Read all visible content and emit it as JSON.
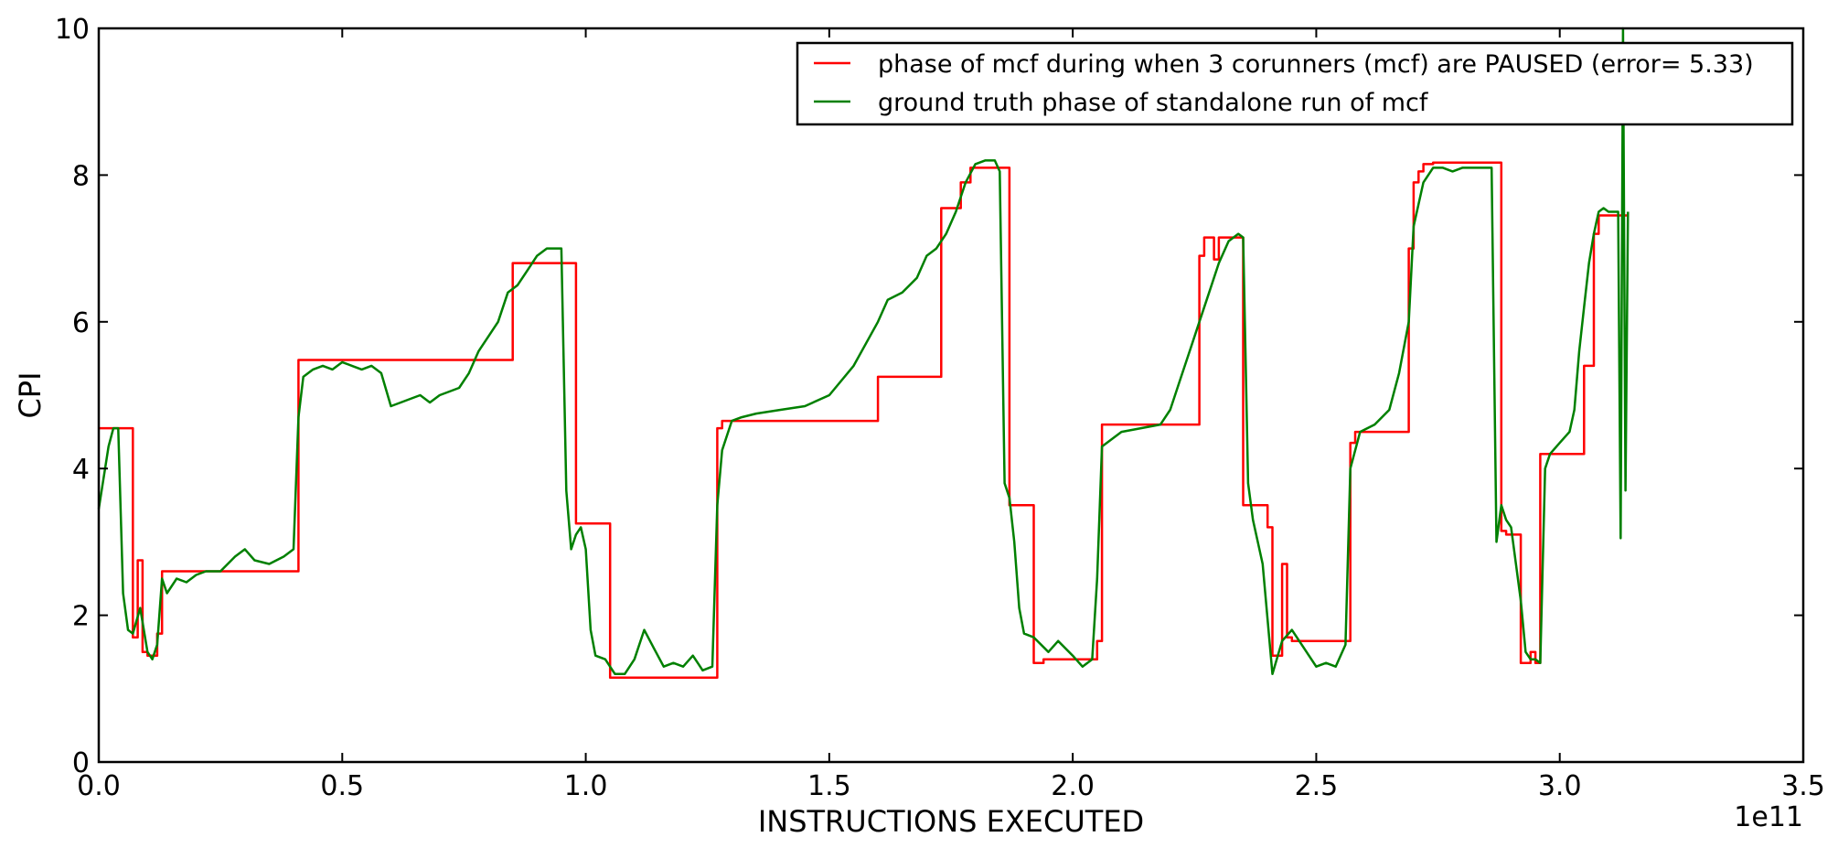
{
  "chart_data": {
    "type": "line",
    "xlabel": "INSTRUCTIONS EXECUTED",
    "ylabel": "CPI",
    "x_offset_label": "1e11",
    "xlim": [
      0,
      3.5
    ],
    "ylim": [
      0,
      10
    ],
    "x_ticks": [
      "0.0",
      "0.5",
      "1.0",
      "1.5",
      "2.0",
      "2.5",
      "3.0",
      "3.5"
    ],
    "y_ticks": [
      "0",
      "2",
      "4",
      "6",
      "8",
      "10"
    ],
    "grid": false,
    "legend_position": "top-right",
    "series": [
      {
        "name": "phase of mcf during when 3 corunners (mcf) are PAUSED (error= 5.33)",
        "color": "#ff0000",
        "style": "step",
        "x": [
          0,
          0.07,
          0.08,
          0.09,
          0.1,
          0.12,
          0.13,
          0.41,
          0.85,
          0.94,
          0.98,
          1.05,
          1.27,
          1.28,
          1.6,
          1.73,
          1.77,
          1.79,
          1.87,
          1.92,
          1.94,
          2.05,
          2.06,
          2.26,
          2.27,
          2.29,
          2.3,
          2.35,
          2.4,
          2.41,
          2.43,
          2.44,
          2.45,
          2.57,
          2.58,
          2.69,
          2.7,
          2.71,
          2.72,
          2.74,
          2.88,
          2.89,
          2.92,
          2.94,
          2.95,
          2.96,
          2.97,
          3.05,
          3.07,
          3.08,
          3.14
        ],
        "y": [
          4.55,
          1.7,
          2.75,
          1.5,
          1.45,
          1.75,
          2.6,
          5.48,
          6.8,
          6.8,
          3.25,
          1.15,
          4.55,
          4.65,
          5.25,
          7.55,
          7.9,
          8.1,
          3.5,
          1.35,
          1.4,
          1.65,
          4.6,
          6.9,
          7.15,
          6.85,
          7.15,
          3.5,
          3.2,
          1.45,
          2.7,
          1.7,
          1.65,
          4.35,
          4.5,
          7.0,
          7.9,
          8.05,
          8.15,
          8.17,
          3.15,
          3.1,
          1.35,
          1.5,
          1.35,
          4.2,
          4.2,
          5.4,
          7.2,
          7.45,
          7.45
        ]
      },
      {
        "name": "ground truth phase of standalone run of mcf",
        "color": "#008000",
        "style": "line",
        "x": [
          0,
          0.02,
          0.03,
          0.04,
          0.05,
          0.06,
          0.07,
          0.085,
          0.1,
          0.11,
          0.12,
          0.13,
          0.14,
          0.16,
          0.18,
          0.2,
          0.22,
          0.25,
          0.28,
          0.3,
          0.32,
          0.35,
          0.38,
          0.4,
          0.41,
          0.42,
          0.44,
          0.46,
          0.48,
          0.5,
          0.52,
          0.54,
          0.56,
          0.58,
          0.6,
          0.62,
          0.64,
          0.66,
          0.68,
          0.7,
          0.72,
          0.74,
          0.76,
          0.78,
          0.8,
          0.82,
          0.84,
          0.86,
          0.88,
          0.9,
          0.92,
          0.94,
          0.95,
          0.96,
          0.97,
          0.98,
          0.99,
          1.0,
          1.01,
          1.02,
          1.04,
          1.06,
          1.08,
          1.1,
          1.12,
          1.14,
          1.16,
          1.18,
          1.2,
          1.22,
          1.24,
          1.26,
          1.27,
          1.28,
          1.3,
          1.32,
          1.35,
          1.4,
          1.45,
          1.5,
          1.55,
          1.6,
          1.62,
          1.65,
          1.68,
          1.7,
          1.72,
          1.74,
          1.76,
          1.78,
          1.8,
          1.82,
          1.84,
          1.85,
          1.86,
          1.87,
          1.88,
          1.89,
          1.9,
          1.92,
          1.95,
          1.97,
          2.0,
          2.02,
          2.04,
          2.05,
          2.06,
          2.1,
          2.14,
          2.18,
          2.2,
          2.22,
          2.24,
          2.26,
          2.28,
          2.3,
          2.32,
          2.34,
          2.35,
          2.36,
          2.37,
          2.38,
          2.39,
          2.41,
          2.43,
          2.45,
          2.48,
          2.5,
          2.52,
          2.54,
          2.56,
          2.57,
          2.59,
          2.62,
          2.65,
          2.67,
          2.69,
          2.7,
          2.72,
          2.74,
          2.76,
          2.78,
          2.8,
          2.82,
          2.84,
          2.86,
          2.87,
          2.88,
          2.89,
          2.9,
          2.91,
          2.92,
          2.93,
          2.94,
          2.95,
          2.96,
          2.97,
          2.98,
          3.0,
          3.02,
          3.03,
          3.04,
          3.05,
          3.06,
          3.07,
          3.08,
          3.09,
          3.1,
          3.11,
          3.12,
          3.125,
          3.13,
          3.135,
          3.14
        ],
        "y": [
          3.45,
          4.3,
          4.55,
          4.55,
          2.3,
          1.8,
          1.75,
          2.1,
          1.5,
          1.4,
          1.6,
          2.5,
          2.3,
          2.5,
          2.45,
          2.55,
          2.6,
          2.6,
          2.8,
          2.9,
          2.75,
          2.7,
          2.8,
          2.9,
          4.7,
          5.25,
          5.35,
          5.4,
          5.35,
          5.45,
          5.4,
          5.35,
          5.4,
          5.3,
          4.85,
          4.9,
          4.95,
          5.0,
          4.9,
          5.0,
          5.05,
          5.1,
          5.3,
          5.6,
          5.8,
          6.0,
          6.4,
          6.5,
          6.7,
          6.9,
          7.0,
          7.0,
          7.0,
          3.7,
          2.9,
          3.1,
          3.2,
          2.9,
          1.8,
          1.45,
          1.4,
          1.2,
          1.2,
          1.4,
          1.8,
          1.55,
          1.3,
          1.35,
          1.3,
          1.45,
          1.25,
          1.3,
          3.5,
          4.25,
          4.65,
          4.7,
          4.75,
          4.8,
          4.85,
          5.0,
          5.4,
          6.0,
          6.3,
          6.4,
          6.6,
          6.9,
          7.0,
          7.2,
          7.5,
          7.9,
          8.15,
          8.2,
          8.2,
          8.05,
          3.8,
          3.6,
          3.0,
          2.1,
          1.75,
          1.7,
          1.5,
          1.65,
          1.45,
          1.3,
          1.4,
          2.5,
          4.3,
          4.5,
          4.55,
          4.6,
          4.8,
          5.2,
          5.6,
          6.0,
          6.4,
          6.8,
          7.1,
          7.2,
          7.15,
          3.8,
          3.3,
          3.0,
          2.7,
          1.2,
          1.65,
          1.8,
          1.5,
          1.3,
          1.35,
          1.3,
          1.6,
          4.0,
          4.5,
          4.6,
          4.8,
          5.3,
          6.0,
          7.3,
          7.9,
          8.1,
          8.1,
          8.05,
          8.1,
          8.1,
          8.1,
          8.1,
          3.0,
          3.5,
          3.3,
          3.2,
          2.7,
          2.2,
          1.5,
          1.4,
          1.4,
          1.35,
          4.0,
          4.2,
          4.35,
          4.5,
          4.8,
          5.6,
          6.2,
          6.8,
          7.2,
          7.5,
          7.55,
          7.5,
          7.5,
          7.5,
          3.05,
          10.0,
          3.7,
          7.5
        ]
      }
    ]
  }
}
